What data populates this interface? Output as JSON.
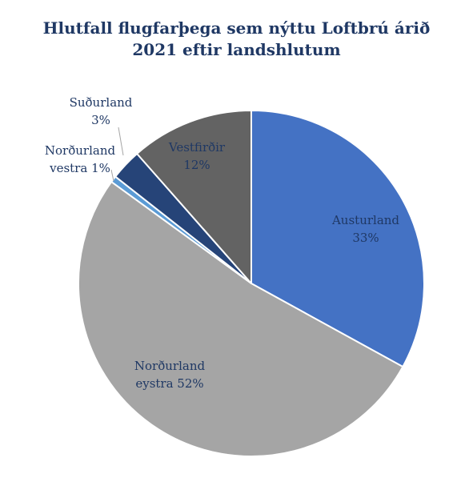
{
  "chart_data": {
    "type": "pie",
    "title_lines": [
      "Hlutfall flugfarþega sem nýttu Loftbrú árið",
      "2021 eftir landshlutum"
    ],
    "start_angle_deg": 0,
    "direction": "clockwise",
    "slices": [
      {
        "label_lines": [
          "Austurland",
          "33%"
        ],
        "value": 33,
        "color": "#4472c4",
        "label_color": "#1f3864",
        "label_position": "inside"
      },
      {
        "label_lines": [
          "Norðurland",
          "eystra 52%"
        ],
        "value": 52,
        "color": "#a5a5a5",
        "label_color": "#1f3864",
        "label_position": "inside"
      },
      {
        "label_lines": [
          "Norðurland",
          "vestra 1%"
        ],
        "value": 0.6,
        "color": "#5b9bd5",
        "label_color": "#1f3864",
        "label_position": "outside"
      },
      {
        "label_lines": [
          "Suðurland",
          "3%"
        ],
        "value": 2.9,
        "color": "#264478",
        "label_color": "#1f3864",
        "label_position": "outside"
      },
      {
        "label_lines": [
          "Vestfirðir",
          "12%"
        ],
        "value": 11.5,
        "color": "#636363",
        "label_color": "#1f3864",
        "label_position": "inside"
      }
    ]
  }
}
